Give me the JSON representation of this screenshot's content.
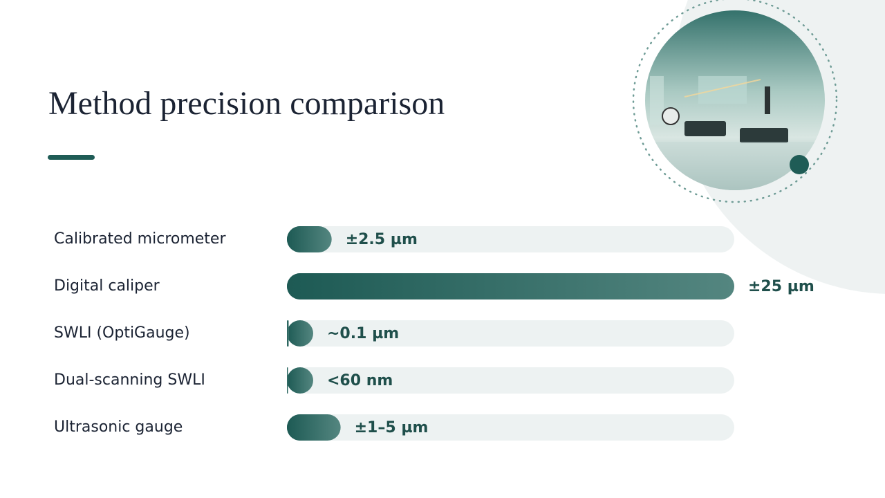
{
  "chart_data": {
    "type": "bar",
    "orientation": "horizontal",
    "title": "Method precision comparison",
    "categories": [
      "Calibrated micrometer",
      "Digital caliper",
      "SWLI (OptiGauge)",
      "Dual-scanning SWLI",
      "Ultrasonic gauge"
    ],
    "values": [
      2.5,
      25,
      0.1,
      0.06,
      3
    ],
    "value_labels": [
      "±2.5 µm",
      "±25 µm",
      "~0.1 µm",
      "<60 nm",
      "±1–5 µm"
    ],
    "xlim": [
      0,
      25
    ],
    "color": "#1f5c56",
    "track_color": "#edf2f2"
  }
}
